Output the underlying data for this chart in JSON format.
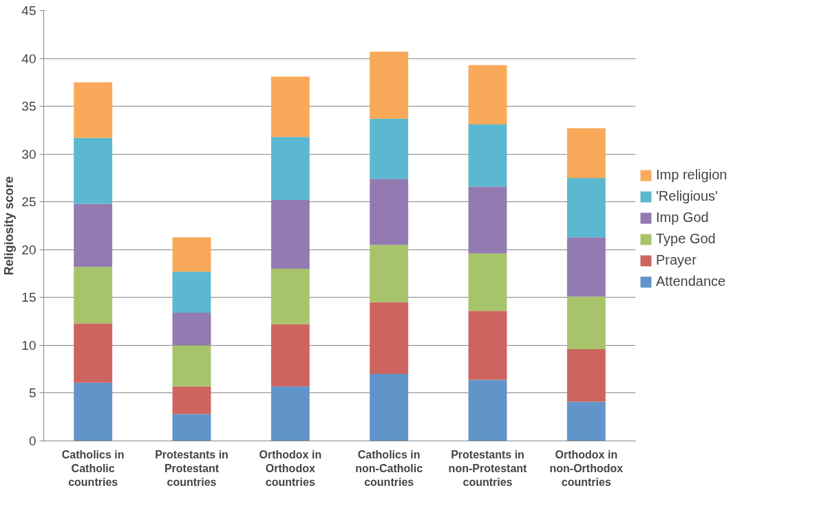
{
  "chart_data": {
    "type": "bar",
    "stacked": true,
    "ylabel": "Religiosity score",
    "categories": [
      "Catholics in\nCatholic\ncountries",
      "Protestants in\nProtestant\ncountries",
      "Orthodox in\nOrthodox\ncountries",
      "Catholics in\nnon-Catholic\ncountries",
      "Protestants in\nnon-Protestant\ncountries",
      "Orthodox in\nnon-Orthodox\ncountries"
    ],
    "series": [
      {
        "name": "Attendance",
        "color": "#6195c9",
        "values": [
          6.1,
          2.8,
          5.7,
          7.0,
          6.4,
          4.1
        ]
      },
      {
        "name": "Prayer",
        "color": "#cd6460",
        "values": [
          6.2,
          2.9,
          6.5,
          7.5,
          7.2,
          5.5
        ]
      },
      {
        "name": "Type God",
        "color": "#a8c46a",
        "values": [
          5.9,
          4.3,
          5.8,
          6.0,
          6.0,
          5.5
        ]
      },
      {
        "name": "Imp God",
        "color": "#937bb2",
        "values": [
          6.6,
          3.4,
          7.2,
          6.9,
          7.0,
          6.2
        ]
      },
      {
        "name": "'Religious'",
        "color": "#5bb8d0",
        "values": [
          6.9,
          4.3,
          6.6,
          6.3,
          6.5,
          6.2
        ]
      },
      {
        "name": "Imp religion",
        "color": "#f8a959",
        "values": [
          5.8,
          3.6,
          6.3,
          7.0,
          6.2,
          5.2
        ]
      }
    ],
    "ylim": [
      0,
      45
    ],
    "yticks": [
      0,
      5,
      10,
      15,
      20,
      25,
      30,
      35,
      40,
      45
    ],
    "grid": "y",
    "legend": "right"
  }
}
